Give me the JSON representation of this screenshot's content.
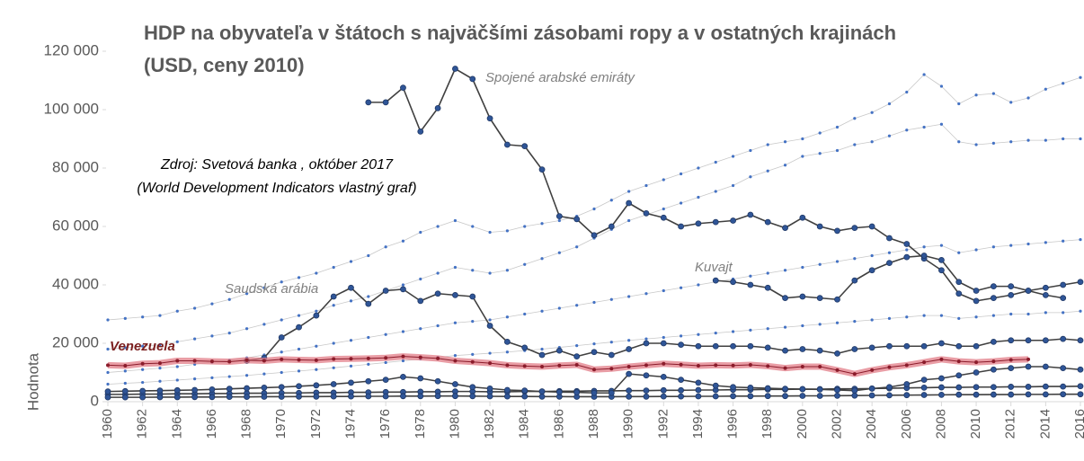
{
  "chart_data": {
    "type": "line",
    "title": "HDP na obyvateľa v štátoch s najväčšími zásobami ropy a v ostatných krajinách",
    "subtitle": "(USD, ceny 2010)",
    "ylabel": "Hodnota",
    "annotations": [
      "Zdroj: Svetová banka , október 2017",
      "(World Development Indicators vlastný graf)"
    ],
    "x": [
      1960,
      1961,
      1962,
      1963,
      1964,
      1965,
      1966,
      1967,
      1968,
      1969,
      1970,
      1971,
      1972,
      1973,
      1974,
      1975,
      1976,
      1977,
      1978,
      1979,
      1980,
      1981,
      1982,
      1983,
      1984,
      1985,
      1986,
      1987,
      1988,
      1989,
      1990,
      1991,
      1992,
      1993,
      1994,
      1995,
      1996,
      1997,
      1998,
      1999,
      2000,
      2001,
      2002,
      2003,
      2004,
      2005,
      2006,
      2007,
      2008,
      2009,
      2010,
      2011,
      2012,
      2013,
      2014,
      2015,
      2016
    ],
    "xlim": [
      1960,
      2016
    ],
    "xticks": [
      1960,
      1962,
      1964,
      1966,
      1968,
      1970,
      1972,
      1974,
      1976,
      1978,
      1980,
      1982,
      1984,
      1986,
      1988,
      1990,
      1992,
      1994,
      1996,
      1998,
      2000,
      2002,
      2004,
      2006,
      2008,
      2010,
      2012,
      2014,
      2016
    ],
    "ylim": [
      0,
      120000
    ],
    "yticks": [
      0,
      {
        "value": 20000,
        "label": "20 000"
      },
      {
        "value": 40000,
        "label": "40 000"
      },
      {
        "value": 60000,
        "label": "60 000"
      },
      {
        "value": 80000,
        "label": "80 000"
      },
      {
        "value": 100000,
        "label": "100 000"
      },
      {
        "value": 120000,
        "label": "120 000"
      }
    ],
    "grid": false,
    "series": [
      {
        "style": "light",
        "color": "#c8c8c8",
        "marker_color": "#4472c4",
        "values": [
          28000,
          28500,
          29000,
          29500,
          31000,
          32000,
          33500,
          35000,
          37000,
          39000,
          41000,
          42500,
          44000,
          46000,
          48000,
          50000,
          53000,
          55000,
          58000,
          60000,
          62000,
          60000,
          58000,
          58500,
          60000,
          61000,
          62000,
          63500,
          66000,
          69000,
          72000,
          74000,
          76000,
          78000,
          80000,
          82000,
          84000,
          86000,
          88000,
          89000,
          90000,
          92000,
          94000,
          97000,
          99000,
          102000,
          106000,
          112000,
          108000,
          102000,
          105000,
          105500,
          102500,
          104000,
          107000,
          109000,
          111000
        ]
      },
      {
        "style": "light",
        "color": "#c8c8c8",
        "marker_color": "#4472c4",
        "values": [
          18000,
          18500,
          19000,
          19500,
          20500,
          21500,
          22500,
          23500,
          25000,
          26500,
          28000,
          29500,
          31000,
          33000,
          34500,
          36000,
          38000,
          40000,
          42000,
          44000,
          46000,
          45000,
          44000,
          45000,
          47000,
          49000,
          51000,
          53000,
          56000,
          59000,
          62000,
          64000,
          66000,
          68000,
          70000,
          72000,
          74000,
          77000,
          79000,
          81000,
          84000,
          85000,
          86000,
          88000,
          89000,
          91000,
          93000,
          94000,
          95000,
          89000,
          88000,
          88500,
          89000,
          89500,
          89500,
          90000,
          90000
        ]
      },
      {
        "style": "light",
        "color": "#c8c8c8",
        "marker_color": "#4472c4",
        "values": [
          10000,
          10500,
          11000,
          11500,
          12000,
          12800,
          13500,
          14200,
          15000,
          16000,
          17000,
          18000,
          19000,
          20000,
          21000,
          22000,
          23000,
          24000,
          25000,
          26000,
          27000,
          27500,
          28000,
          29000,
          30000,
          31000,
          32000,
          33000,
          34000,
          35000,
          36000,
          37000,
          38000,
          39000,
          40000,
          41000,
          42000,
          43000,
          44000,
          45000,
          46000,
          47000,
          48000,
          49000,
          50000,
          51000,
          52000,
          53000,
          53500,
          51000,
          52000,
          53000,
          53500,
          54000,
          54500,
          55000,
          55500
        ]
      },
      {
        "style": "light",
        "color": "#c8c8c8",
        "marker_color": "#4472c4",
        "values": [
          6000,
          6300,
          6600,
          7000,
          7400,
          7800,
          8200,
          8600,
          9000,
          9500,
          10000,
          10500,
          11000,
          11600,
          12200,
          12800,
          13400,
          14000,
          14600,
          15200,
          15800,
          16200,
          16600,
          17000,
          17500,
          18000,
          18600,
          19200,
          19800,
          20400,
          21000,
          21500,
          22000,
          22500,
          23000,
          23500,
          24000,
          24500,
          25000,
          25500,
          26000,
          26500,
          27000,
          27500,
          28000,
          28500,
          29000,
          29500,
          29500,
          28500,
          29000,
          29500,
          30000,
          30000,
          30500,
          30500,
          31000
        ]
      },
      {
        "style": "dark",
        "color": "#404040",
        "marker_color": "#2f5597",
        "values": [
          2500,
          2500,
          2600,
          2600,
          2700,
          2700,
          2800,
          2800,
          2900,
          2900,
          3000,
          3000,
          3100,
          3100,
          3200,
          3200,
          3300,
          3300,
          3400,
          3400,
          3500,
          3500,
          3400,
          3400,
          3500,
          3500,
          3600,
          3600,
          3700,
          3700,
          3800,
          3800,
          3900,
          3900,
          4000,
          4000,
          4100,
          4100,
          4200,
          4200,
          4300,
          4300,
          4400,
          4400,
          4500,
          4600,
          4700,
          4800,
          4900,
          4900,
          5000,
          5000,
          5100,
          5100,
          5200,
          5200,
          5300
        ]
      },
      {
        "style": "dark",
        "color": "#404040",
        "marker_color": "#2f5597",
        "values": [
          1500,
          1500,
          1500,
          1550,
          1550,
          1600,
          1600,
          1650,
          1650,
          1700,
          1700,
          1750,
          1750,
          1800,
          1800,
          1850,
          1850,
          1900,
          1900,
          1950,
          1950,
          1900,
          1850,
          1800,
          1800,
          1750,
          1750,
          1700,
          1700,
          1700,
          1750,
          1750,
          1800,
          1800,
          1850,
          1850,
          1900,
          1900,
          1950,
          1950,
          2000,
          2000,
          2050,
          2100,
          2150,
          2200,
          2250,
          2300,
          2350,
          2400,
          2400,
          2450,
          2450,
          2500,
          2500,
          2550,
          2550
        ]
      },
      {
        "style": "dark",
        "color": "#404040",
        "marker_color": "#2f5597",
        "values": [
          3500,
          3600,
          3700,
          3800,
          3900,
          4000,
          4200,
          4400,
          4600,
          4800,
          5000,
          5300,
          5600,
          6000,
          6500,
          7000,
          7500,
          8500,
          8000,
          7000,
          6000,
          5000,
          4500,
          4000,
          3800,
          3500,
          3300,
          3200,
          3000,
          3000,
          9500,
          9000,
          8500,
          7500,
          6500,
          5500,
          5000,
          4800,
          4600,
          4400,
          4300,
          4200,
          4000,
          3800,
          4500,
          5000,
          6000,
          7500,
          8000,
          9000,
          10000,
          11000,
          11500,
          12000,
          12000,
          11500,
          11000
        ]
      },
      {
        "name": "Spojené arabské emiráty",
        "style": "dark",
        "color": "#404040",
        "marker_color": "#2f5597",
        "values": [
          null,
          null,
          null,
          null,
          null,
          null,
          null,
          null,
          null,
          null,
          null,
          null,
          null,
          null,
          null,
          102500,
          102500,
          107500,
          92500,
          100500,
          114000,
          110500,
          97000,
          88000,
          87500,
          79500,
          63500,
          62500,
          57000,
          60000,
          68000,
          64500,
          63000,
          60000,
          61000,
          61500,
          62000,
          64000,
          61500,
          59500,
          63000,
          60000,
          58500,
          59500,
          60000,
          56000,
          54000,
          49000,
          45000,
          37000,
          34500,
          35500,
          36500,
          38000,
          39000,
          40000,
          41000
        ]
      },
      {
        "name": "Saudská arábia",
        "style": "dark",
        "color": "#404040",
        "marker_color": "#2f5597",
        "values": [
          null,
          null,
          null,
          null,
          null,
          null,
          null,
          null,
          14000,
          15000,
          22000,
          25500,
          29500,
          36000,
          39000,
          33500,
          38000,
          38500,
          34500,
          37000,
          36500,
          36000,
          26000,
          20500,
          18500,
          16000,
          17500,
          15500,
          17000,
          16000,
          18000,
          20000,
          20000,
          19500,
          19000,
          19000,
          19000,
          19000,
          18500,
          17500,
          18000,
          17500,
          16500,
          18000,
          18500,
          19000,
          19000,
          19000,
          20000,
          19000,
          19000,
          20500,
          21000,
          21000,
          21000,
          21500,
          21000
        ]
      },
      {
        "name": "Kuvajt",
        "style": "dark",
        "color": "#404040",
        "marker_color": "#2f5597",
        "values": [
          null,
          null,
          null,
          null,
          null,
          null,
          null,
          null,
          null,
          null,
          null,
          null,
          null,
          null,
          null,
          null,
          null,
          null,
          null,
          null,
          null,
          null,
          null,
          null,
          null,
          null,
          null,
          null,
          null,
          null,
          null,
          null,
          null,
          null,
          null,
          41500,
          41000,
          40000,
          39000,
          35500,
          36000,
          35500,
          35000,
          41500,
          45000,
          47500,
          49500,
          50000,
          48500,
          41000,
          38000,
          39500,
          39500,
          38000,
          36500,
          35500,
          null
        ]
      },
      {
        "name": "Venezuela",
        "style": "thick",
        "color": "#e27c87",
        "marker_color": "#8b1c2b",
        "values": [
          12500,
          12300,
          13000,
          13200,
          14000,
          14000,
          13800,
          13700,
          14200,
          14000,
          14500,
          14300,
          14200,
          14600,
          14700,
          14800,
          15000,
          15500,
          15200,
          14800,
          14000,
          13600,
          13200,
          12500,
          12200,
          12000,
          12400,
          12600,
          11000,
          11300,
          12000,
          12500,
          13000,
          12700,
          12300,
          12500,
          12400,
          12600,
          12200,
          11500,
          12000,
          12000,
          10800,
          9500,
          10800,
          11800,
          12500,
          13500,
          14500,
          13800,
          13500,
          13800,
          14300,
          14500,
          null,
          null,
          null
        ]
      }
    ]
  }
}
